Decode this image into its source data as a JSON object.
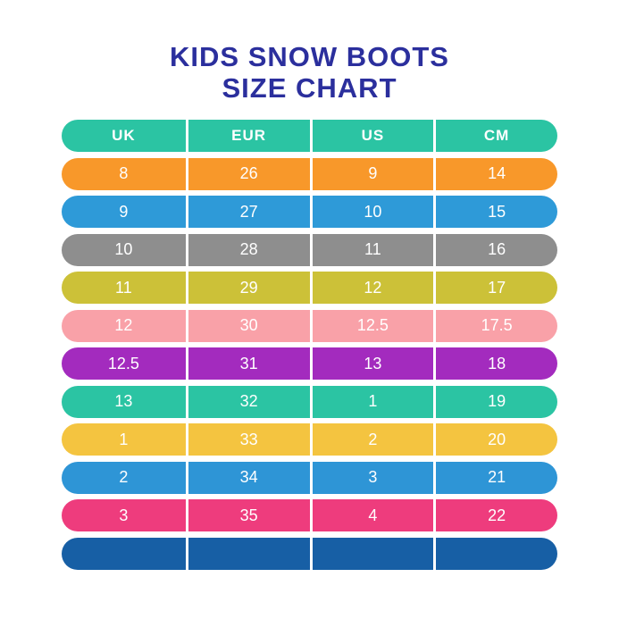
{
  "title": {
    "line1": "KIDS SNOW BOOTS",
    "line2": "SIZE CHART"
  },
  "colors": {
    "title_text": "#2B2F9D",
    "header_row": "#2BC4A3",
    "cell_text": "#FFFFFF",
    "divider": "#FFFFFF",
    "background": "#FFFFFF"
  },
  "chart_data": {
    "type": "table",
    "title": "KIDS SNOW BOOTS SIZE CHART",
    "columns": [
      "UK",
      "EUR",
      "US",
      "CM"
    ],
    "rows": [
      {
        "values": [
          "8",
          "26",
          "9",
          "14"
        ],
        "color": "#F8982A"
      },
      {
        "values": [
          "9",
          "27",
          "10",
          "15"
        ],
        "color": "#2E9AD8"
      },
      {
        "values": [
          "10",
          "28",
          "11",
          "16"
        ],
        "color": "#8E8E8E"
      },
      {
        "values": [
          "11",
          "29",
          "12",
          "17"
        ],
        "color": "#CCC138"
      },
      {
        "values": [
          "12",
          "30",
          "12.5",
          "17.5"
        ],
        "color": "#F9A1A8"
      },
      {
        "values": [
          "12.5",
          "31",
          "13",
          "18"
        ],
        "color": "#A32BBE"
      },
      {
        "values": [
          "13",
          "32",
          "1",
          "19"
        ],
        "color": "#2BC4A3"
      },
      {
        "values": [
          "1",
          "33",
          "2",
          "20"
        ],
        "color": "#F4C440"
      },
      {
        "values": [
          "2",
          "34",
          "3",
          "21"
        ],
        "color": "#2E95D6"
      },
      {
        "values": [
          "3",
          "35",
          "4",
          "22"
        ],
        "color": "#EE3C7D"
      },
      {
        "values": [
          "",
          "",
          "",
          ""
        ],
        "color": "#175FA5"
      }
    ]
  }
}
